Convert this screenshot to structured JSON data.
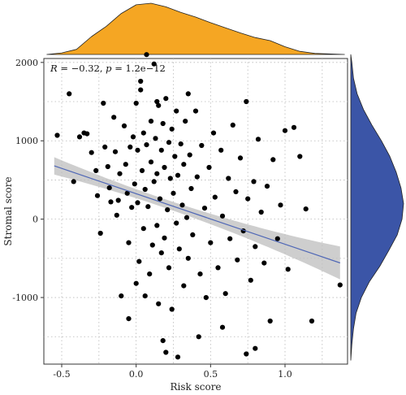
{
  "chart_data": {
    "type": "scatter",
    "xlabel": "Risk score",
    "ylabel": "Stromal score",
    "xlim": [
      -0.62,
      1.42
    ],
    "ylim": [
      -1850,
      2050
    ],
    "xticks": [
      "-0.5",
      "0.0",
      "0.5",
      "1.0"
    ],
    "xtick_values": [
      -0.5,
      0.0,
      0.5,
      1.0
    ],
    "yticks": [
      "-1000",
      "0",
      "1000",
      "2000"
    ],
    "ytick_values": [
      -1000,
      0,
      1000,
      2000
    ],
    "grid": "dotted",
    "annotation": {
      "r_symbol": "R",
      "r_text": " = −0.32, ",
      "p_symbol": "p",
      "p_text": " = 1.2e−12"
    },
    "regression": {
      "x_range": [
        -0.55,
        1.37
      ],
      "intercept": 325,
      "slope": -645,
      "ci_half_width_at_ends": 210,
      "ci_half_width_at_center": 55,
      "center_x": 0.17,
      "line_color": "#4f67b6",
      "band_color": "#bdbdbd"
    },
    "point_color": "#000000",
    "top_density_color": "#f5a623",
    "right_density_color": "#3b55a7",
    "x_density_points": [
      [
        -0.6,
        0.0
      ],
      [
        -0.5,
        0.03
      ],
      [
        -0.4,
        0.1
      ],
      [
        -0.3,
        0.35
      ],
      [
        -0.2,
        0.55
      ],
      [
        -0.1,
        0.8
      ],
      [
        0.0,
        0.97
      ],
      [
        0.1,
        1.0
      ],
      [
        0.2,
        0.93
      ],
      [
        0.3,
        0.82
      ],
      [
        0.4,
        0.73
      ],
      [
        0.5,
        0.62
      ],
      [
        0.6,
        0.52
      ],
      [
        0.7,
        0.42
      ],
      [
        0.8,
        0.33
      ],
      [
        0.9,
        0.27
      ],
      [
        1.0,
        0.15
      ],
      [
        1.1,
        0.06
      ],
      [
        1.2,
        0.02
      ],
      [
        1.4,
        0.0
      ]
    ],
    "y_density_points": [
      [
        -1800,
        0.0
      ],
      [
        -1600,
        0.02
      ],
      [
        -1400,
        0.05
      ],
      [
        -1200,
        0.1
      ],
      [
        -1000,
        0.2
      ],
      [
        -800,
        0.35
      ],
      [
        -600,
        0.55
      ],
      [
        -400,
        0.72
      ],
      [
        -200,
        0.88
      ],
      [
        0,
        0.97
      ],
      [
        200,
        1.0
      ],
      [
        400,
        0.95
      ],
      [
        600,
        0.86
      ],
      [
        800,
        0.74
      ],
      [
        1000,
        0.58
      ],
      [
        1200,
        0.4
      ],
      [
        1400,
        0.24
      ],
      [
        1600,
        0.12
      ],
      [
        1800,
        0.05
      ],
      [
        2000,
        0.02
      ],
      [
        2100,
        0.0
      ]
    ],
    "points": [
      [
        -0.53,
        1070
      ],
      [
        -0.45,
        1600
      ],
      [
        -0.38,
        1050
      ],
      [
        -0.35,
        1100
      ],
      [
        -0.33,
        1090
      ],
      [
        -0.3,
        850
      ],
      [
        -0.27,
        620
      ],
      [
        -0.26,
        300
      ],
      [
        -0.22,
        1480
      ],
      [
        -0.21,
        920
      ],
      [
        -0.19,
        670
      ],
      [
        -0.18,
        400
      ],
      [
        -0.17,
        220
      ],
      [
        -0.15,
        1300
      ],
      [
        -0.14,
        860
      ],
      [
        -0.13,
        50
      ],
      [
        -0.11,
        580
      ],
      [
        -0.1,
        -980
      ],
      [
        -0.08,
        1190
      ],
      [
        -0.07,
        700
      ],
      [
        -0.06,
        330
      ],
      [
        -0.05,
        -300
      ],
      [
        -0.04,
        920
      ],
      [
        -0.03,
        150
      ],
      [
        -0.02,
        1050
      ],
      [
        -0.01,
        450
      ],
      [
        0.0,
        -820
      ],
      [
        0.0,
        1480
      ],
      [
        0.01,
        880
      ],
      [
        0.01,
        210
      ],
      [
        0.02,
        -540
      ],
      [
        0.03,
        1760
      ],
      [
        0.03,
        1650
      ],
      [
        0.04,
        620
      ],
      [
        0.05,
        1100
      ],
      [
        0.05,
        -120
      ],
      [
        0.06,
        380
      ],
      [
        0.07,
        2100
      ],
      [
        0.07,
        950
      ],
      [
        0.08,
        160
      ],
      [
        0.09,
        -700
      ],
      [
        0.1,
        1250
      ],
      [
        0.1,
        730
      ],
      [
        0.11,
        -330
      ],
      [
        0.12,
        1980
      ],
      [
        0.12,
        480
      ],
      [
        0.13,
        1030
      ],
      [
        0.14,
        -80
      ],
      [
        0.14,
        580
      ],
      [
        0.15,
        1450
      ],
      [
        0.15,
        -1080
      ],
      [
        0.16,
        260
      ],
      [
        0.17,
        880
      ],
      [
        0.17,
        -430
      ],
      [
        0.18,
        1220
      ],
      [
        0.19,
        660
      ],
      [
        0.19,
        -240
      ],
      [
        0.2,
        1540
      ],
      [
        0.21,
        120
      ],
      [
        0.22,
        980
      ],
      [
        0.22,
        -620
      ],
      [
        0.23,
        520
      ],
      [
        0.24,
        1150
      ],
      [
        0.24,
        -1150
      ],
      [
        0.25,
        330
      ],
      [
        0.26,
        800
      ],
      [
        0.27,
        -50
      ],
      [
        0.27,
        1380
      ],
      [
        0.28,
        560
      ],
      [
        0.29,
        -380
      ],
      [
        0.3,
        960
      ],
      [
        0.31,
        180
      ],
      [
        0.32,
        -850
      ],
      [
        0.32,
        700
      ],
      [
        0.33,
        1250
      ],
      [
        0.34,
        20
      ],
      [
        0.35,
        -500
      ],
      [
        0.36,
        820
      ],
      [
        0.37,
        390
      ],
      [
        0.38,
        -200
      ],
      [
        0.4,
        1380
      ],
      [
        0.41,
        540
      ],
      [
        0.43,
        -700
      ],
      [
        0.44,
        940
      ],
      [
        0.46,
        140
      ],
      [
        0.47,
        -1000
      ],
      [
        0.49,
        660
      ],
      [
        0.5,
        -300
      ],
      [
        0.52,
        1100
      ],
      [
        0.53,
        280
      ],
      [
        0.55,
        -620
      ],
      [
        0.57,
        880
      ],
      [
        0.58,
        40
      ],
      [
        0.6,
        -950
      ],
      [
        0.62,
        520
      ],
      [
        0.63,
        -250
      ],
      [
        0.65,
        1200
      ],
      [
        0.67,
        350
      ],
      [
        0.68,
        -520
      ],
      [
        0.7,
        780
      ],
      [
        0.72,
        -150
      ],
      [
        0.74,
        1500
      ],
      [
        0.75,
        260
      ],
      [
        0.77,
        -780
      ],
      [
        0.79,
        480
      ],
      [
        0.8,
        -350
      ],
      [
        0.82,
        1020
      ],
      [
        0.84,
        90
      ],
      [
        0.86,
        -560
      ],
      [
        0.88,
        420
      ],
      [
        0.9,
        -1300
      ],
      [
        0.92,
        760
      ],
      [
        0.95,
        -250
      ],
      [
        0.97,
        180
      ],
      [
        1.0,
        1130
      ],
      [
        1.02,
        -640
      ],
      [
        1.06,
        1170
      ],
      [
        1.1,
        800
      ],
      [
        1.14,
        130
      ],
      [
        1.18,
        -1300
      ],
      [
        1.37,
        -840
      ],
      [
        -0.42,
        480
      ],
      [
        -0.24,
        -180
      ],
      [
        -0.12,
        240
      ],
      [
        0.06,
        -980
      ],
      [
        0.18,
        -1550
      ],
      [
        0.2,
        -1700
      ],
      [
        0.28,
        -1760
      ],
      [
        0.74,
        -1720
      ],
      [
        0.8,
        -1650
      ],
      [
        -0.05,
        -1270
      ],
      [
        0.42,
        -1500
      ],
      [
        0.58,
        -1380
      ],
      [
        0.35,
        1600
      ],
      [
        0.14,
        1500
      ]
    ]
  }
}
